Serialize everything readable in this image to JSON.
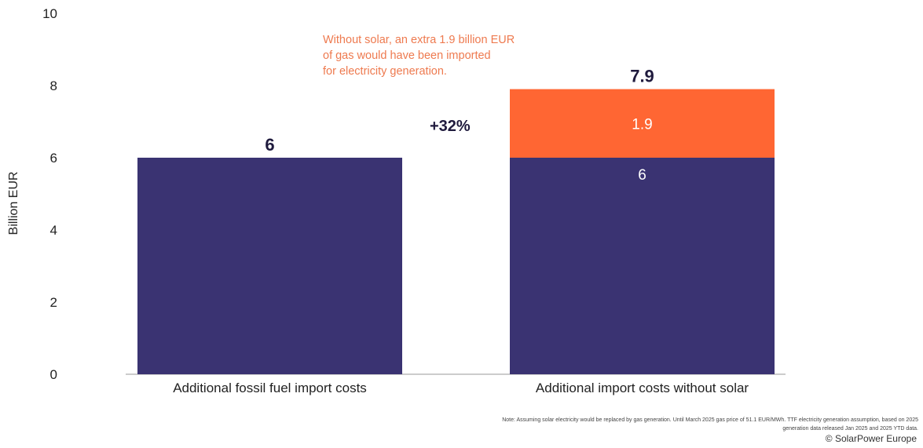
{
  "chart_data": {
    "type": "bar",
    "stacked": true,
    "categories": [
      "Additional fossil fuel import costs",
      "Additional import costs without solar"
    ],
    "series": [
      {
        "values": [
          6,
          6
        ],
        "color": "#3a3372"
      },
      {
        "values": [
          0,
          1.9
        ],
        "color": "#ff6633"
      }
    ],
    "segment_labels": [
      [
        null,
        "6"
      ],
      [
        null,
        "1.9"
      ]
    ],
    "totals": [
      "6",
      "7.9"
    ],
    "title": "",
    "xlabel": "",
    "ylabel": "Billion EUR",
    "ylim": [
      0,
      10
    ],
    "yticks": [
      0,
      2,
      4,
      6,
      8,
      10
    ],
    "grid": false,
    "annotations": {
      "note": "Without solar, an extra 1.9 billion EUR\nof gas would have been imported\nfor electricity generation.",
      "percent_change": "+32%"
    }
  },
  "footer": {
    "note": "Note: Assuming solar electricity would be replaced by gas generation. Until March 2025 gas price of 51.1 EUR/MWh. TTF electricity generation assumption, based on 2025 generation data released Jan 2025 and 2025 YTD data.",
    "copyright": "© SolarPower Europe"
  }
}
